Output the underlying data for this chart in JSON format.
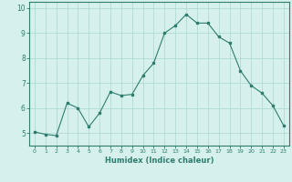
{
  "x": [
    0,
    1,
    2,
    3,
    4,
    5,
    6,
    7,
    8,
    9,
    10,
    11,
    12,
    13,
    14,
    15,
    16,
    17,
    18,
    19,
    20,
    21,
    22,
    23
  ],
  "y": [
    5.05,
    4.95,
    4.9,
    6.2,
    6.0,
    5.25,
    5.8,
    6.65,
    6.5,
    6.55,
    7.3,
    7.8,
    9.0,
    9.3,
    9.75,
    9.4,
    9.4,
    8.85,
    8.6,
    7.5,
    6.9,
    6.6,
    6.1,
    5.3
  ],
  "line_color": "#2e7d6e",
  "bg_color": "#d6f0ee",
  "grid_color": "#aad6d0",
  "xlabel": "Humidex (Indice chaleur)",
  "ylabel": "",
  "ylim": [
    4.5,
    10.25
  ],
  "xlim": [
    -0.5,
    23.5
  ],
  "xtick_labels": [
    "0",
    "1",
    "2",
    "3",
    "4",
    "5",
    "6",
    "7",
    "8",
    "9",
    "10",
    "11",
    "12",
    "13",
    "14",
    "15",
    "16",
    "17",
    "18",
    "19",
    "20",
    "21",
    "22",
    "23"
  ],
  "ytick_labels": [
    "5",
    "6",
    "7",
    "8",
    "9",
    "10"
  ],
  "ytick_vals": [
    5,
    6,
    7,
    8,
    9,
    10
  ],
  "xlabel_color": "#2e7d6e",
  "tick_color": "#2e7d6e",
  "axis_color": "#2e7d6e",
  "xtick_fontsize": 4.5,
  "ytick_fontsize": 5.5,
  "xlabel_fontsize": 6.0
}
